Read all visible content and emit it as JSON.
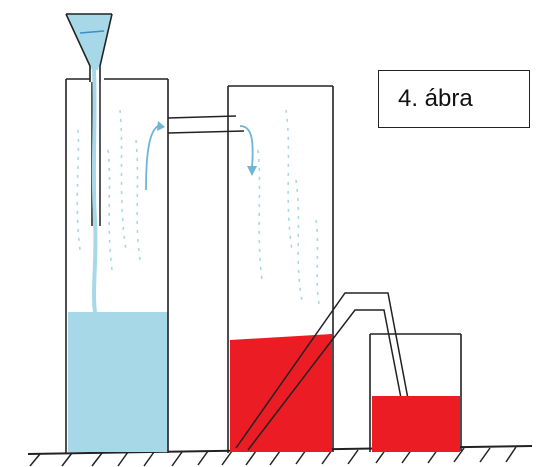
{
  "caption": "4. ábra",
  "colors": {
    "water": "#a7d8e8",
    "water_dark": "#6fb5d4",
    "red_liquid": "#ec1c24",
    "outline": "#222222",
    "background": "#ffffff"
  },
  "icons": {
    "funnel": "funnel-icon",
    "arrow": "curved-arrow-icon"
  }
}
